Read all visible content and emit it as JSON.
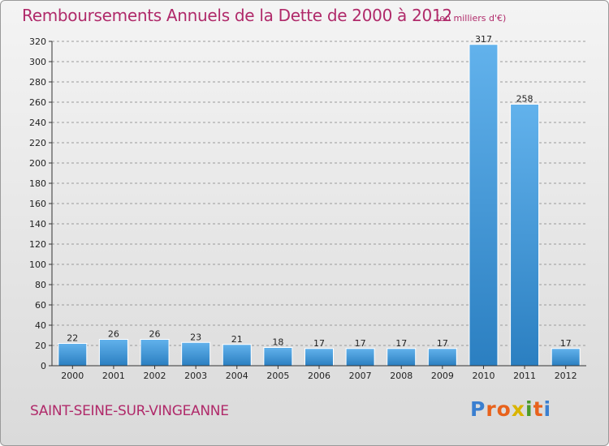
{
  "title": "Remboursements Annuels de la Dette de 2000 à 2012",
  "subtitle": "(en milliers d'€)",
  "commune": "SAINT-SEINE-SUR-VINGEANNE",
  "logo": {
    "text": "Proxiti",
    "letter_colors": [
      "#3a7fd0",
      "#e8621c",
      "#e8621c",
      "#d9b400",
      "#4a9a2a",
      "#e8621c",
      "#3a7fd0"
    ]
  },
  "colors": {
    "title": "#b02a6a",
    "bar_light": "#62b2ec",
    "bar_dark": "#2b7fc1",
    "axis": "#333333",
    "grid": "#9a9a9a"
  },
  "chart_data": {
    "type": "bar",
    "title": "Remboursements Annuels de la Dette de 2000 à 2012",
    "subtitle": "(en milliers d'€)",
    "categories": [
      "2000",
      "2001",
      "2002",
      "2003",
      "2004",
      "2005",
      "2006",
      "2007",
      "2008",
      "2009",
      "2010",
      "2011",
      "2012"
    ],
    "values": [
      22,
      26,
      26,
      23,
      21,
      18,
      17,
      17,
      17,
      17,
      317,
      258,
      17
    ],
    "ylim": [
      0,
      320
    ],
    "yticks": [
      0,
      20,
      40,
      60,
      80,
      100,
      120,
      140,
      160,
      180,
      200,
      220,
      240,
      260,
      280,
      300,
      320
    ],
    "grid": true,
    "xlabel": "",
    "ylabel": ""
  }
}
